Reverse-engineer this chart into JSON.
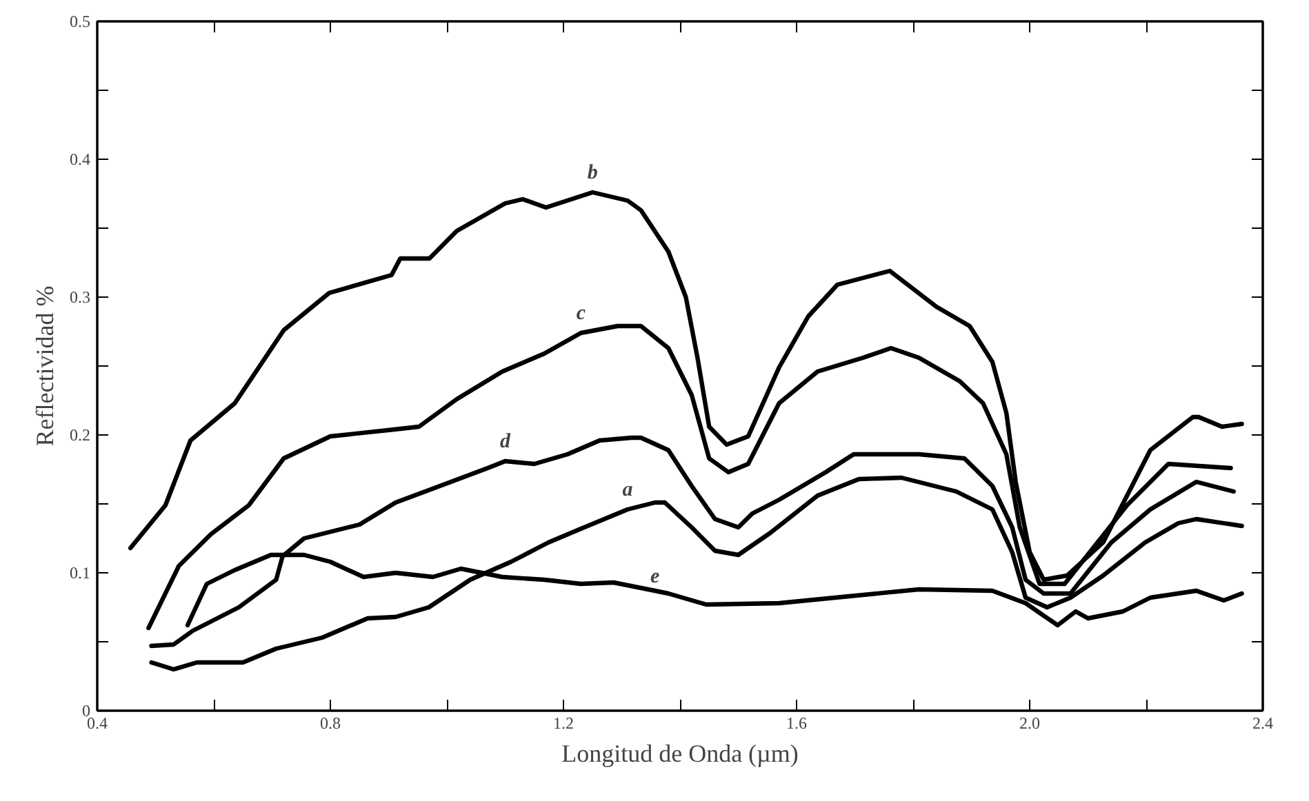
{
  "chart_data": {
    "type": "line",
    "xlabel": "Longitud de Onda (µm)",
    "ylabel": "Reflectividad %",
    "xlim": [
      0.4,
      2.4
    ],
    "ylim": [
      0,
      0.5
    ],
    "xticks": [
      0.4,
      {
        "value": 0.6,
        "label": null
      },
      0.8,
      {
        "value": 1.0,
        "label": null
      },
      1.2,
      {
        "value": 1.4,
        "label": null
      },
      1.6,
      {
        "value": 1.8,
        "label": null
      },
      {
        "value": 2.0,
        "label": "2.0"
      },
      {
        "value": 2.2,
        "label": null
      },
      2.4
    ],
    "yticks": [
      0,
      {
        "value": 0.05,
        "label": null
      },
      0.1,
      {
        "value": 0.15,
        "label": null
      },
      0.2,
      {
        "value": 0.25,
        "label": null
      },
      0.3,
      {
        "value": 0.35,
        "label": null
      },
      0.4,
      {
        "value": 0.45,
        "label": null
      },
      0.5
    ],
    "grid": false,
    "marker": "none",
    "line_style": "solid",
    "series": [
      {
        "color": "#000000",
        "x": [
          0.493,
          0.531,
          0.571,
          0.65,
          0.707,
          0.786,
          0.864,
          0.912,
          0.969,
          1.04,
          1.11,
          1.174,
          1.23,
          1.31,
          1.357,
          1.374,
          1.42,
          1.46,
          1.5,
          1.555,
          1.636,
          1.707,
          1.78,
          1.874,
          1.936,
          1.97,
          1.993,
          2.03,
          2.07,
          2.126,
          2.198,
          2.255,
          2.286,
          2.364
        ],
        "values": [
          0.035,
          0.03,
          0.035,
          0.035,
          0.045,
          0.053,
          0.067,
          0.068,
          0.075,
          0.095,
          0.108,
          0.122,
          0.132,
          0.146,
          0.151,
          0.151,
          0.133,
          0.116,
          0.113,
          0.129,
          0.156,
          0.168,
          0.169,
          0.159,
          0.146,
          0.115,
          0.082,
          0.075,
          0.082,
          0.098,
          0.122,
          0.136,
          0.139,
          0.134
        ]
      },
      {
        "color": "#000000",
        "x": [
          0.457,
          0.517,
          0.56,
          0.636,
          0.72,
          0.798,
          0.905,
          0.92,
          0.97,
          1.017,
          1.1,
          1.13,
          1.17,
          1.25,
          1.31,
          1.333,
          1.38,
          1.41,
          1.43,
          1.45,
          1.48,
          1.517,
          1.57,
          1.62,
          1.67,
          1.76,
          1.84,
          1.897,
          1.936,
          1.96,
          1.976,
          2.0,
          2.024,
          2.064,
          2.126,
          2.207,
          2.28,
          2.29,
          2.33,
          2.364
        ],
        "values": [
          0.118,
          0.149,
          0.196,
          0.223,
          0.276,
          0.303,
          0.316,
          0.328,
          0.328,
          0.348,
          0.368,
          0.371,
          0.365,
          0.376,
          0.37,
          0.363,
          0.333,
          0.3,
          0.256,
          0.206,
          0.193,
          0.199,
          0.249,
          0.286,
          0.309,
          0.319,
          0.293,
          0.279,
          0.253,
          0.216,
          0.166,
          0.115,
          0.095,
          0.098,
          0.122,
          0.189,
          0.213,
          0.213,
          0.206,
          0.208
        ]
      },
      {
        "color": "#000000",
        "x": [
          0.488,
          0.54,
          0.595,
          0.66,
          0.72,
          0.8,
          0.91,
          0.952,
          1.017,
          1.095,
          1.167,
          1.23,
          1.293,
          1.333,
          1.38,
          1.42,
          1.45,
          1.483,
          1.517,
          1.57,
          1.636,
          1.714,
          1.762,
          1.81,
          1.88,
          1.92,
          1.96,
          1.983,
          2.017,
          2.06,
          2.167,
          2.238,
          2.345
        ],
        "values": [
          0.06,
          0.105,
          0.128,
          0.149,
          0.183,
          0.199,
          0.204,
          0.206,
          0.226,
          0.246,
          0.259,
          0.274,
          0.279,
          0.279,
          0.263,
          0.229,
          0.183,
          0.173,
          0.179,
          0.223,
          0.246,
          0.256,
          0.263,
          0.256,
          0.239,
          0.223,
          0.186,
          0.133,
          0.092,
          0.092,
          0.149,
          0.179,
          0.176
        ]
      },
      {
        "color": "#000000",
        "x": [
          0.493,
          0.531,
          0.564,
          0.643,
          0.707,
          0.718,
          0.755,
          0.85,
          0.912,
          1.007,
          1.07,
          1.1,
          1.15,
          1.207,
          1.262,
          1.317,
          1.333,
          1.38,
          1.42,
          1.46,
          1.5,
          1.524,
          1.57,
          1.65,
          1.698,
          1.81,
          1.888,
          1.936,
          1.97,
          1.993,
          2.024,
          2.07,
          2.14,
          2.207,
          2.286,
          2.35
        ],
        "values": [
          0.047,
          0.048,
          0.058,
          0.075,
          0.095,
          0.112,
          0.125,
          0.135,
          0.151,
          0.166,
          0.176,
          0.181,
          0.179,
          0.186,
          0.196,
          0.198,
          0.198,
          0.189,
          0.163,
          0.139,
          0.133,
          0.143,
          0.153,
          0.173,
          0.186,
          0.186,
          0.183,
          0.163,
          0.133,
          0.095,
          0.085,
          0.085,
          0.122,
          0.146,
          0.166,
          0.159
        ]
      },
      {
        "color": "#000000",
        "x": [
          0.555,
          0.588,
          0.636,
          0.698,
          0.755,
          0.8,
          0.857,
          0.912,
          0.976,
          1.024,
          1.095,
          1.167,
          1.23,
          1.286,
          1.357,
          1.38,
          1.445,
          1.57,
          1.69,
          1.81,
          1.936,
          1.993,
          2.048,
          2.079,
          2.1,
          2.16,
          2.207,
          2.286,
          2.333,
          2.364
        ],
        "values": [
          0.062,
          0.092,
          0.102,
          0.113,
          0.113,
          0.108,
          0.097,
          0.1,
          0.097,
          0.103,
          0.097,
          0.095,
          0.092,
          0.093,
          0.087,
          0.085,
          0.077,
          0.078,
          0.083,
          0.088,
          0.087,
          0.078,
          0.062,
          0.072,
          0.067,
          0.072,
          0.082,
          0.087,
          0.08,
          0.085
        ]
      }
    ],
    "annotations": [
      {
        "text": "b",
        "x": 1.25,
        "y": 0.376
      },
      {
        "text": "c",
        "x": 1.23,
        "y": 0.274
      },
      {
        "text": "d",
        "x": 1.1,
        "y": 0.181
      },
      {
        "text": "a",
        "x": 1.31,
        "y": 0.146
      },
      {
        "text": "e",
        "x": 1.357,
        "y": 0.087
      }
    ]
  }
}
